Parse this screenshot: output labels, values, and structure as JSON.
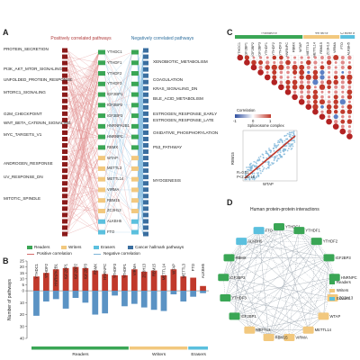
{
  "panels": {
    "A": {
      "letter": "A",
      "left_header": "Positively correlated pathways",
      "right_header": "Negatively correlated pathways",
      "left_pathways": [
        "PROTEIN_SECRETION",
        "PI3K_AKT_MTOR_SIGNALING",
        "UNFOLDED_PROTEIN_RESPONSE",
        "MTORC1_SIGNALING",
        "G2M_CHECKPOINT",
        "WNT_BETA_CATENIN_SIGNALING",
        "MYC_TARGETS_V1",
        "ANDROGEN_RESPONSE",
        "UV_RESPONSE_DN",
        "MITOTIC_SPINDLE"
      ],
      "right_pathways": [
        "XENOBIOTIC_METABOLISM",
        "COAGULATION",
        "KRAS_SIGNALING_DN",
        "BILE_ACID_METABOLISM",
        "ESTROGEN_RESPONSE_EARLY",
        "ESTROGEN_RESPONSE_LATE",
        "OXIDATIVE_PHOSPHORYLATION",
        "P53_PATHWAY",
        "MYOGENESIS"
      ],
      "genes": [
        "YTHDC1",
        "YTHDF1",
        "YTHDF2",
        "YTHDF3",
        "IGF2BP1",
        "IGF2BP2",
        "IGF2BP3",
        "HNRNPA2B1",
        "HNRNPC",
        "RBMX",
        "WTAP",
        "METTL3",
        "METTL14",
        "VIRMA",
        "RBM15",
        "ZC3H13",
        "ALKBH5",
        "FTO"
      ],
      "legend": {
        "readers": "Readers",
        "writers": "Writers",
        "erasers": "Erasers",
        "hallmark": "Cancer hallmark pathways",
        "pos": "Positive correlation",
        "neg": "Negative correlation"
      }
    },
    "B": {
      "letter": "B",
      "ylabel": "Number of pathways",
      "group_labels": [
        "Readers",
        "Writers",
        "Erasers"
      ]
    },
    "C": {
      "letter": "C",
      "group_labels": [
        "Readers",
        "Writers",
        "Erasers"
      ],
      "colorbar_label": "Correlation",
      "colorbar_ticks": [
        "-1",
        "0",
        "1"
      ],
      "scatter_title": "Spliceosome complex",
      "scatter_xlabel": "WTAP",
      "scatter_ylabel": "RBM15",
      "scatter_stats_r": "R=0.51",
      "scatter_stats_p": "P<2.2E-16",
      "genes": [
        "YTHDC1",
        "IGF2BP1",
        "IGF2BP2",
        "IGF2BP3",
        "YTHDF1",
        "YTHDF2",
        "YTHDF3",
        "HNRNPC",
        "RBMX",
        "WTAP",
        "METTL3",
        "METTL14",
        "RBM15",
        "ZC3H13",
        "VIRMA",
        "FTO",
        "ALKBH5"
      ]
    },
    "D": {
      "letter": "D",
      "title": "Human protein-protein interactions",
      "legend": {
        "readers": "Readers",
        "writers": "Writers",
        "erasers": "Erasers"
      },
      "nodes": [
        "YTHDC1",
        "YTHDF1",
        "YTHDF2",
        "IGF2BP3",
        "HNRNPC",
        "ZC3H13",
        "WTAP",
        "METTL14",
        "VIRMA",
        "RBM15",
        "METTL3",
        "IGF2BP1",
        "YTHDF3",
        "IGF2BP2",
        "RBMX",
        "ALKBH5",
        "FTO"
      ]
    }
  },
  "chart_data": {
    "type": "bar",
    "categories": [
      "YTHDC1",
      "YTHDF2",
      "HNRNPA2B1",
      "IGF2BP1",
      "IGF2BP2",
      "IGF2BP3",
      "RBMX",
      "HNRNPC",
      "YTHDF3",
      "YTHDF1",
      "VIRMA",
      "ZC3H13",
      "RBM15",
      "METTL14",
      "WTAP",
      "METTL3",
      "FTO",
      "ALKBH5"
    ],
    "series": [
      {
        "name": "Positive correlation",
        "values": [
          12,
          15,
          18,
          19,
          20,
          19,
          17,
          14,
          13,
          13,
          18,
          16,
          17,
          13,
          18,
          12,
          11,
          4
        ]
      },
      {
        "name": "Negative correlation",
        "values": [
          -21,
          -9,
          -7,
          -15,
          -6,
          -10,
          -20,
          -19,
          -4,
          -13,
          -11,
          -14,
          -16,
          -17,
          -3,
          -9,
          -5,
          -2
        ]
      }
    ],
    "ylabel": "Number of pathways",
    "ylim": [
      -40,
      25
    ],
    "yticks": [
      25,
      20,
      15,
      10,
      5,
      0,
      -10,
      -20,
      -30,
      -40
    ],
    "colors": {
      "positive": "#c0392b",
      "negative": "#5b93c4",
      "readers": "#3aa655",
      "writers": "#f2c87e",
      "erasers": "#5bc0de"
    }
  }
}
